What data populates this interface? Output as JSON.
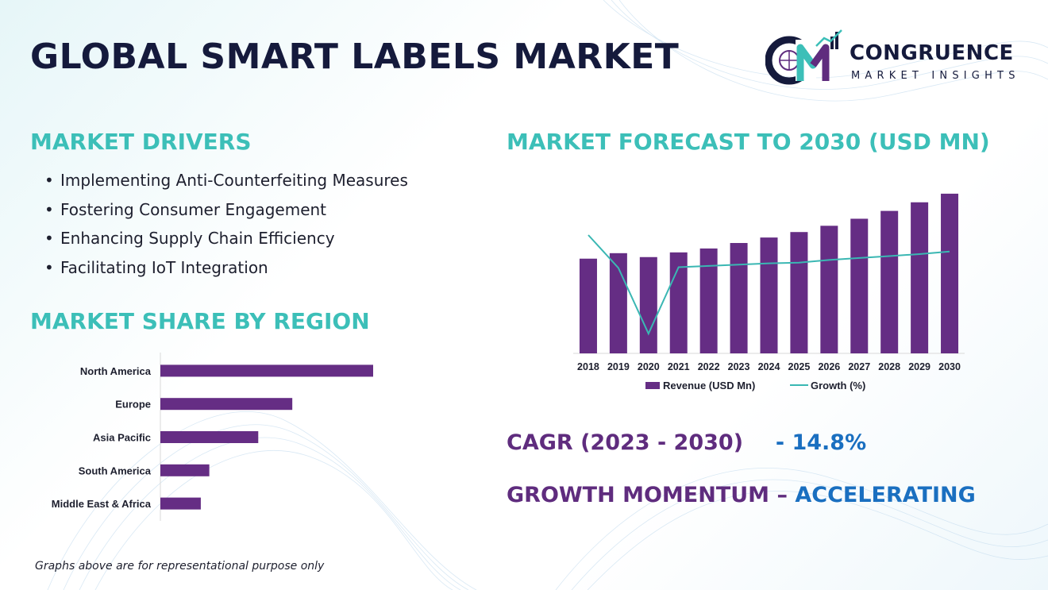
{
  "title": "GLOBAL SMART LABELS MARKET",
  "logo": {
    "name": "CONGRUENCE",
    "subtitle": "MARKET INSIGHTS",
    "monogram": "CM"
  },
  "drivers": {
    "title": "MARKET DRIVERS",
    "items": [
      "Implementing Anti-Counterfeiting Measures",
      "Fostering Consumer Engagement",
      "Enhancing Supply Chain Efficiency",
      "Facilitating IoT Integration"
    ]
  },
  "region": {
    "title": "MARKET SHARE BY REGION"
  },
  "forecast": {
    "title": "MARKET FORECAST TO 2030 (USD MN)"
  },
  "cagr": {
    "label": "CAGR (2023 - 2030)",
    "value": "- 14.8%"
  },
  "momentum": {
    "label": "GROWTH MOMENTUM –",
    "value": "ACCELERATING"
  },
  "footnote": "Graphs above are for representational purpose only",
  "colors": {
    "title": "#151a3c",
    "teal": "#3cbfb8",
    "purple": "#5f2c7e",
    "blue": "#1a6fc0",
    "bar": "#652d84",
    "growth_line": "#3ab7b3"
  },
  "chart_data": [
    {
      "type": "bar",
      "orientation": "horizontal",
      "categories": [
        "North America",
        "Europe",
        "Asia Pacific",
        "South America",
        "Middle East & Africa"
      ],
      "values": [
        100,
        62,
        46,
        23,
        19
      ],
      "xlim": [
        0,
        100
      ]
    },
    {
      "type": "bar",
      "categories": [
        "2018",
        "2019",
        "2020",
        "2021",
        "2022",
        "2023",
        "2024",
        "2025",
        "2026",
        "2027",
        "2028",
        "2029",
        "2030"
      ],
      "series": [
        {
          "name": "Revenue (USD Mn)",
          "type": "bar",
          "values": [
            121,
            128,
            123,
            129,
            134,
            141,
            148,
            155,
            163,
            172,
            182,
            193,
            204
          ]
        },
        {
          "name": "Growth (%)",
          "type": "line",
          "values": [
            18,
            13,
            3,
            13.1,
            13.3,
            13.5,
            13.7,
            13.8,
            14.2,
            14.5,
            14.8,
            15.1,
            15.5
          ]
        }
      ],
      "ylim": [
        0,
        210
      ],
      "y2lim": [
        0,
        25
      ],
      "legend": "bottom"
    }
  ]
}
